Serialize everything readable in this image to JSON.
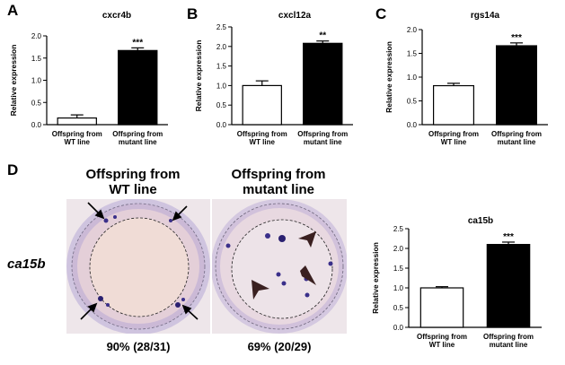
{
  "panels": {
    "A": "A",
    "B": "B",
    "C": "C",
    "D": "D"
  },
  "chart_data": [
    {
      "id": "A",
      "type": "bar",
      "title": "cxcr4b",
      "ylabel": "Relative expression",
      "categories": [
        "Offspring from WT line",
        "Offspring from mutant line"
      ],
      "category_lines": [
        [
          "Offspring from",
          "WT line"
        ],
        [
          "Offspring from",
          "mutant line"
        ]
      ],
      "values": [
        0.15,
        1.67
      ],
      "errors": [
        0.07,
        0.06
      ],
      "fills": [
        "#ffffff",
        "#000000"
      ],
      "significance": [
        "",
        "***"
      ],
      "ylim": [
        0,
        2.0
      ],
      "yticks": [
        "0.0",
        "0.5",
        "1.0",
        "1.5",
        "2.0"
      ],
      "ytick_values": [
        0,
        0.5,
        1.0,
        1.5,
        2.0
      ]
    },
    {
      "id": "B",
      "type": "bar",
      "title": "cxcl12a",
      "ylabel": "Relative expression",
      "categories": [
        "Offspring from WT line",
        "Offspring from mutant line"
      ],
      "category_lines": [
        [
          "Offspring from",
          "WT line"
        ],
        [
          "Offspring from",
          "mutant line"
        ]
      ],
      "values": [
        1.0,
        2.08
      ],
      "errors": [
        0.12,
        0.06
      ],
      "fills": [
        "#ffffff",
        "#000000"
      ],
      "significance": [
        "",
        "**"
      ],
      "ylim": [
        0,
        2.5
      ],
      "yticks": [
        "0.0",
        "0.5",
        "1.0",
        "1.5",
        "2.0",
        "2.5"
      ],
      "ytick_values": [
        0,
        0.5,
        1.0,
        1.5,
        2.0,
        2.5
      ]
    },
    {
      "id": "C",
      "type": "bar",
      "title": "rgs14a",
      "ylabel": "Relative expression",
      "categories": [
        "Offspring from WT line",
        "Offspring from mutant line"
      ],
      "category_lines": [
        [
          "Offspring from",
          "WT line"
        ],
        [
          "Offspring from",
          "mutant line"
        ]
      ],
      "values": [
        0.82,
        1.66
      ],
      "errors": [
        0.05,
        0.06
      ],
      "fills": [
        "#ffffff",
        "#000000"
      ],
      "significance": [
        "",
        "***"
      ],
      "ylim": [
        0,
        2.0
      ],
      "yticks": [
        "0.0",
        "0.5",
        "1.0",
        "1.5",
        "2.0"
      ],
      "ytick_values": [
        0,
        0.5,
        1.0,
        1.5,
        2.0
      ]
    },
    {
      "id": "D",
      "type": "bar",
      "title": "ca15b",
      "ylabel": "Relative expression",
      "categories": [
        "Offspring from WT line",
        "Offspring from mutant line"
      ],
      "category_lines": [
        [
          "Offspring from",
          "WT line"
        ],
        [
          "Offspring from",
          "mutant line"
        ]
      ],
      "values": [
        1.0,
        2.1
      ],
      "errors": [
        0.03,
        0.06
      ],
      "fills": [
        "#ffffff",
        "#000000"
      ],
      "significance": [
        "",
        "***"
      ],
      "ylim": [
        0,
        2.5
      ],
      "yticks": [
        "0.0",
        "0.5",
        "1.0",
        "1.5",
        "2.0",
        "2.5"
      ],
      "ytick_values": [
        0,
        0.5,
        1.0,
        1.5,
        2.0,
        2.5
      ]
    }
  ],
  "panel_d": {
    "gene": "ca15b",
    "wt_title": [
      "Offspring from",
      "WT line"
    ],
    "mutant_title": [
      "Offspring from",
      "mutant line"
    ],
    "wt_percent": "90% (28/31)",
    "mutant_percent": "69% (20/29)"
  },
  "colors": {
    "stain": "#3a2f8a",
    "embryo_bg": "#e8dde4",
    "yolk_ring": "#c9bde0"
  }
}
